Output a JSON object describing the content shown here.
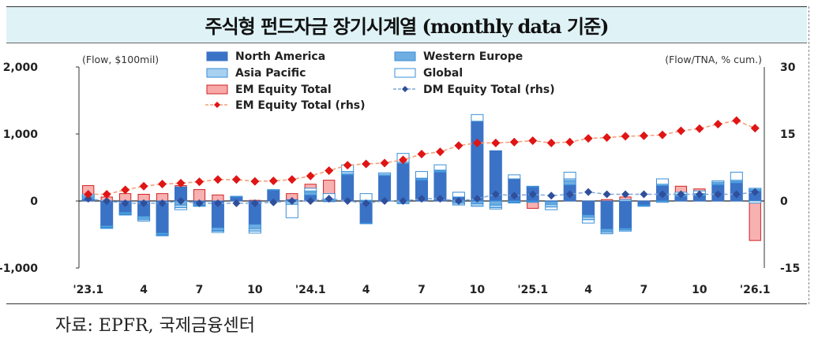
{
  "title": "주식형 펀드자금 장기시계열 (monthly data 기준)",
  "source": "자료: EPFR, 국제금융센터",
  "colors": {
    "north_america": "#3a72c6",
    "western_europe": "#6faee2",
    "asia_pacific": "#a8d0f0",
    "global": "#ffffff",
    "global_border": "#3a8fd8",
    "em_equity": "#f7a9a9",
    "em_equity_border": "#d22222",
    "dm_line": "#7fa6d9",
    "dm_marker": "#2f4f9a",
    "em_line": "#f3a07a",
    "em_marker": "#e01515"
  },
  "chart_data": {
    "type": "bar",
    "stacked": true,
    "categories": [
      "'23.1",
      "",
      "",
      "4",
      "",
      "",
      "7",
      "",
      "",
      "10",
      "",
      "",
      "'24.1",
      "",
      "",
      "4",
      "",
      "",
      "7",
      "",
      "",
      "10",
      "",
      "",
      "'25.1",
      "",
      "",
      "4",
      "",
      "",
      "7",
      "",
      "",
      "10",
      "",
      "",
      "'26.1"
    ],
    "left_axis": {
      "label": "(Flow, $100mil)",
      "ylim": [
        -1000,
        2000
      ],
      "ticks": [
        "2,000",
        "1,000",
        "0",
        "-1,000"
      ]
    },
    "right_axis": {
      "label": "(Flow/TNA, % cum.)",
      "ylim": [
        -15,
        30
      ],
      "ticks": [
        "30",
        "15",
        "0",
        "-15"
      ]
    },
    "legend": [
      "North America",
      "Western Europe",
      "Asia Pacific",
      "Global",
      "EM Equity Total",
      "DM Equity Total (rhs)",
      "EM Equity Total (rhs)"
    ],
    "legend_position": "top",
    "series": [
      {
        "name": "North America",
        "values": [
          30,
          -370,
          -170,
          -230,
          -480,
          210,
          -40,
          -400,
          60,
          -350,
          160,
          20,
          90,
          -10,
          390,
          -330,
          380,
          560,
          310,
          430,
          60,
          1190,
          750,
          330,
          210,
          -10,
          240,
          -210,
          -420,
          -410,
          -60,
          230,
          70,
          80,
          240,
          270,
          150
        ]
      },
      {
        "name": "Western Europe",
        "values": [
          30,
          -20,
          -20,
          -30,
          -20,
          -60,
          -20,
          -40,
          0,
          -60,
          0,
          -10,
          40,
          20,
          10,
          10,
          0,
          -40,
          20,
          20,
          -30,
          -40,
          -60,
          -20,
          -10,
          -40,
          60,
          -30,
          -30,
          -20,
          -10,
          -20,
          20,
          20,
          20,
          20,
          20
        ]
      },
      {
        "name": "Asia Pacific",
        "values": [
          20,
          -10,
          -10,
          -20,
          -10,
          -40,
          -10,
          -10,
          10,
          -40,
          10,
          -40,
          20,
          10,
          40,
          -10,
          20,
          20,
          10,
          10,
          -30,
          -40,
          -40,
          -10,
          -10,
          -40,
          30,
          -40,
          -20,
          -20,
          -10,
          20,
          10,
          10,
          20,
          20,
          20
        ]
      },
      {
        "name": "Global",
        "values": [
          20,
          -10,
          -10,
          -20,
          -10,
          -30,
          -10,
          -20,
          0,
          -30,
          0,
          -200,
          40,
          80,
          100,
          100,
          20,
          130,
          100,
          80,
          70,
          100,
          -20,
          60,
          10,
          -40,
          100,
          -50,
          -20,
          20,
          0,
          80,
          30,
          40,
          20,
          120,
          -30
        ]
      },
      {
        "name": "EM Equity Total",
        "values": [
          230,
          60,
          110,
          100,
          110,
          230,
          170,
          90,
          20,
          10,
          60,
          110,
          250,
          310,
          250,
          10,
          50,
          230,
          190,
          350,
          130,
          140,
          130,
          120,
          -110,
          -100,
          230,
          -20,
          20,
          60,
          -20,
          180,
          220,
          180,
          290,
          320,
          -590
        ]
      },
      {
        "name": "DM Equity Total (rhs)",
        "axis": "right",
        "values": [
          0.5,
          0,
          -0.5,
          -0.5,
          -0.5,
          0,
          -0.5,
          -0.5,
          -0.5,
          -0.5,
          -0.3,
          0,
          0,
          0.5,
          0,
          -0.5,
          0,
          0,
          0.5,
          0.5,
          0,
          0.5,
          1.5,
          1.2,
          1.5,
          1.2,
          1.5,
          2,
          1.5,
          1.5,
          1.5,
          1.5,
          1.5,
          1.5,
          1.5,
          1.5,
          2
        ]
      },
      {
        "name": "EM Equity Total (rhs)",
        "axis": "right",
        "values": [
          1.5,
          1.5,
          2.5,
          3.3,
          3.8,
          4,
          4.3,
          4.8,
          4.8,
          4.4,
          4.5,
          4.8,
          5.6,
          6.8,
          8,
          8.3,
          8.5,
          9.2,
          10.5,
          11,
          12.4,
          13,
          13,
          13.2,
          13.5,
          13,
          13.2,
          14,
          14.2,
          14.5,
          14.6,
          14.8,
          15.7,
          16.2,
          17.2,
          18,
          16.3
        ]
      }
    ]
  }
}
